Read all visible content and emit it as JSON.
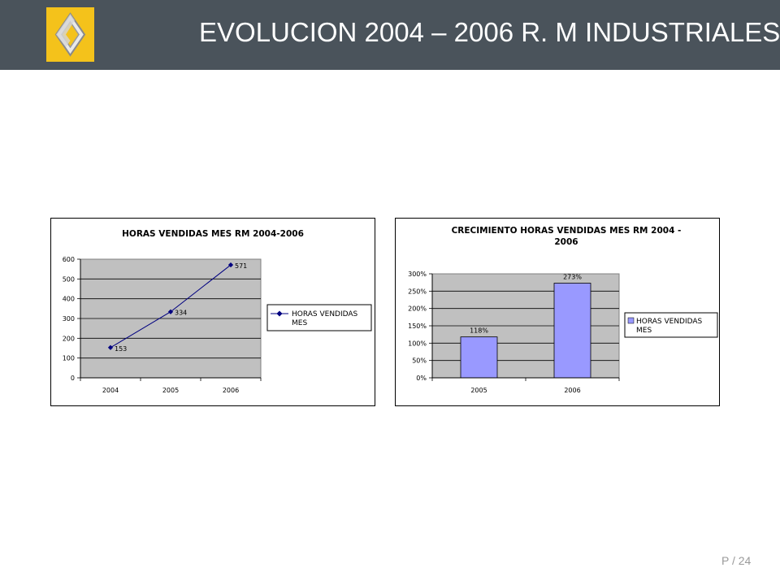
{
  "header": {
    "title": "EVOLUCION 2004 – 2006 R. M INDUSTRIALES",
    "logo": "renault-diamond-logo",
    "background": "#4a535b"
  },
  "footer": {
    "page": "P / 24"
  },
  "chart_data": [
    {
      "type": "line",
      "title": "HORAS VENDIDAS MES RM 2004-2006",
      "categories": [
        "2004",
        "2005",
        "2006"
      ],
      "series": [
        {
          "name": "HORAS VENDIDAS MES",
          "values": [
            153,
            334,
            571
          ],
          "labels": [
            "153",
            "334",
            "571"
          ],
          "color": "#000080"
        }
      ],
      "yticks": [
        "0",
        "100",
        "200",
        "300",
        "400",
        "500",
        "600"
      ],
      "ylim": [
        0,
        600
      ],
      "grid": true,
      "legend": "right",
      "plot_background": "#c0c0c0"
    },
    {
      "type": "bar",
      "title": "CRECIMIENTO HORAS VENDIDAS MES RM 2004 - 2006",
      "categories": [
        "2005",
        "2006"
      ],
      "series": [
        {
          "name": "HORAS VENDIDAS MES",
          "values": [
            1.18,
            2.73
          ],
          "labels": [
            "118%",
            "273%"
          ],
          "color": "#9999ff"
        }
      ],
      "yticks": [
        "0%",
        "50%",
        "100%",
        "150%",
        "200%",
        "250%",
        "300%"
      ],
      "ylim": [
        0,
        3
      ],
      "grid": true,
      "legend": "right",
      "plot_background": "#c0c0c0"
    }
  ]
}
